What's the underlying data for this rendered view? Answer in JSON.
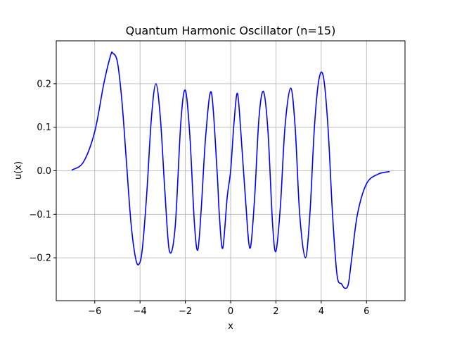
{
  "chart_data": {
    "type": "line",
    "title": "Quantum Harmonic Oscillator (n=15)",
    "xlabel": "x",
    "ylabel": "u(x)",
    "xlim": [
      -7.7,
      7.7
    ],
    "ylim": [
      -0.2985,
      0.2985
    ],
    "grid": true,
    "xticks": [
      -6,
      -4,
      -2,
      0,
      2,
      4,
      6
    ],
    "xtick_labels": [
      "−6",
      "−4",
      "−2",
      "0",
      "2",
      "4",
      "6"
    ],
    "yticks": [
      -0.2,
      -0.1,
      0.0,
      0.1,
      0.2
    ],
    "ytick_labels": [
      "−0.2",
      "−0.1",
      "0.0",
      "0.1",
      "0.2"
    ],
    "series": [
      {
        "color": "#0000ff",
        "x": [
          -7.0,
          -6.5,
          -6.0,
          -5.6,
          -5.3,
          -5.2,
          -5.0,
          -4.8,
          -4.6,
          -4.4,
          -4.2,
          -4.05,
          -3.9,
          -3.7,
          -3.5,
          -3.3,
          -3.1,
          -2.9,
          -2.7,
          -2.45,
          -2.2,
          -2.0,
          -1.8,
          -1.6,
          -1.45,
          -1.3,
          -1.1,
          -0.85,
          -0.6,
          -0.5,
          -0.35,
          -0.15,
          0.0,
          0.15,
          0.3,
          0.45,
          0.65,
          0.85,
          1.05,
          1.25,
          1.45,
          1.65,
          1.85,
          2.0,
          2.2,
          2.4,
          2.65,
          2.85,
          3.05,
          3.3,
          3.5,
          3.7,
          3.9,
          4.1,
          4.3,
          4.5,
          4.7,
          4.9,
          5.05,
          5.2,
          5.35,
          5.6,
          6.0,
          6.5,
          7.0
        ],
        "y": [
          0.002,
          0.02,
          0.09,
          0.2,
          0.265,
          0.27,
          0.25,
          0.16,
          0.02,
          -0.12,
          -0.2,
          -0.215,
          -0.18,
          -0.05,
          0.12,
          0.2,
          0.12,
          -0.05,
          -0.185,
          -0.13,
          0.11,
          0.185,
          0.08,
          -0.12,
          -0.182,
          -0.09,
          0.08,
          0.18,
          0.0,
          -0.1,
          -0.178,
          -0.06,
          0.0,
          0.11,
          0.178,
          0.09,
          -0.06,
          -0.178,
          -0.07,
          0.12,
          0.182,
          0.09,
          -0.12,
          -0.185,
          -0.08,
          0.1,
          0.19,
          0.1,
          -0.1,
          -0.2,
          -0.1,
          0.1,
          0.21,
          0.215,
          0.1,
          -0.1,
          -0.24,
          -0.26,
          -0.27,
          -0.26,
          -0.2,
          -0.1,
          -0.03,
          -0.008,
          -0.002
        ]
      }
    ]
  }
}
